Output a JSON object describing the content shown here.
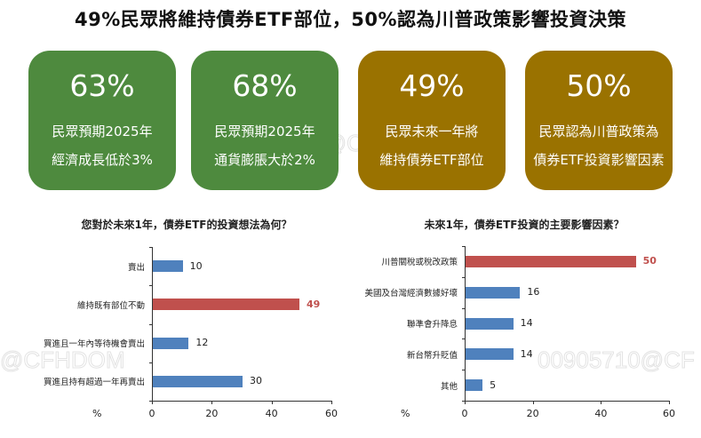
{
  "title": "49%民眾將維持債券ETF部位，50%認為川普政策影響投資決策",
  "cards": [
    {
      "value": "63%",
      "line1": "民眾預期2025年",
      "line2": "經濟成長低於3%",
      "color": "#4e8a3e"
    },
    {
      "value": "68%",
      "line1": "民眾預期2025年",
      "line2": "通貨膨脹大於2%",
      "color": "#4e8a3e"
    },
    {
      "value": "49%",
      "line1": "民眾未來一年將",
      "line2": "維持債券ETF部位",
      "color": "#9a7200"
    },
    {
      "value": "50%",
      "line1": "民眾認為川普政策為",
      "line2": "債券ETF投資影響因素",
      "color": "#9a7200"
    }
  ],
  "watermarks": [
    "00905710@CFHDOM",
    "@CFHDOM",
    "00905710@CF"
  ],
  "colors": {
    "bar": "#4f81bd",
    "highlight": "#c0504d"
  },
  "chart_data": [
    {
      "type": "bar",
      "orientation": "horizontal",
      "title": "您對於未來1年，債券ETF的投資想法為何？",
      "categories": [
        "賣出",
        "維持既有部位不動",
        "買進且一年內等待機會賣出",
        "買進且持有超過一年再賣出"
      ],
      "values": [
        10,
        49,
        12,
        30
      ],
      "highlight_index": 1,
      "xlabel": "%",
      "xticks": [
        "0",
        "20",
        "40",
        "60"
      ],
      "xlim": [
        0,
        60
      ],
      "grid": false
    },
    {
      "type": "bar",
      "orientation": "horizontal",
      "title": "未來1年，債券ETF投資的主要影響因素？",
      "categories": [
        "川普關稅或稅改政策",
        "美國及台灣經濟數據好壞",
        "聯準會升降息",
        "新台幣升貶值",
        "其他"
      ],
      "values": [
        50,
        16,
        14,
        14,
        5
      ],
      "highlight_index": 0,
      "xlabel": "%",
      "xticks": [
        "0",
        "20",
        "40",
        "60"
      ],
      "xlim": [
        0,
        60
      ],
      "grid": false
    }
  ]
}
